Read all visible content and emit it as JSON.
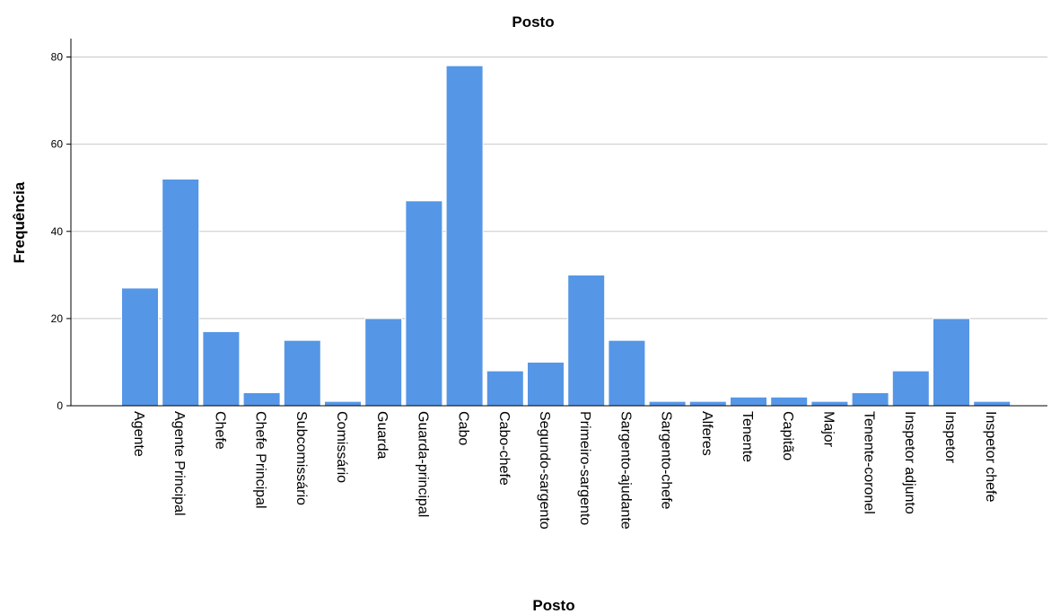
{
  "chart_data": {
    "type": "bar",
    "title": "Posto",
    "xlabel": "Posto",
    "ylabel": "Frequência",
    "ylim": [
      0,
      84
    ],
    "yticks": [
      0,
      20,
      40,
      60,
      80
    ],
    "grid": true,
    "categories": [
      "Agente",
      "Agente Principal",
      "Chefe",
      "Chefe Principal",
      "Subcomissário",
      "Comissário",
      "Guarda",
      "Guarda-principal",
      "Cabo",
      "Cabo-chefe",
      "Segundo-sargento",
      "Primeiro-sargento",
      "Sargento-ajudante",
      "Sargento-chefe",
      "Alferes",
      "Tenente",
      "Capitão",
      "Major",
      "Tenente-coronel",
      "Inspetor adjunto",
      "Inspetor",
      "Inspetor chefe"
    ],
    "values": [
      27,
      52,
      17,
      3,
      15,
      1,
      20,
      47,
      78,
      8,
      10,
      30,
      15,
      1,
      1,
      2,
      2,
      1,
      3,
      8,
      20,
      1
    ],
    "colors": {
      "bar": "#5596e6",
      "bar_edge": "#ffffff",
      "grid": "#c8c8c8"
    }
  }
}
